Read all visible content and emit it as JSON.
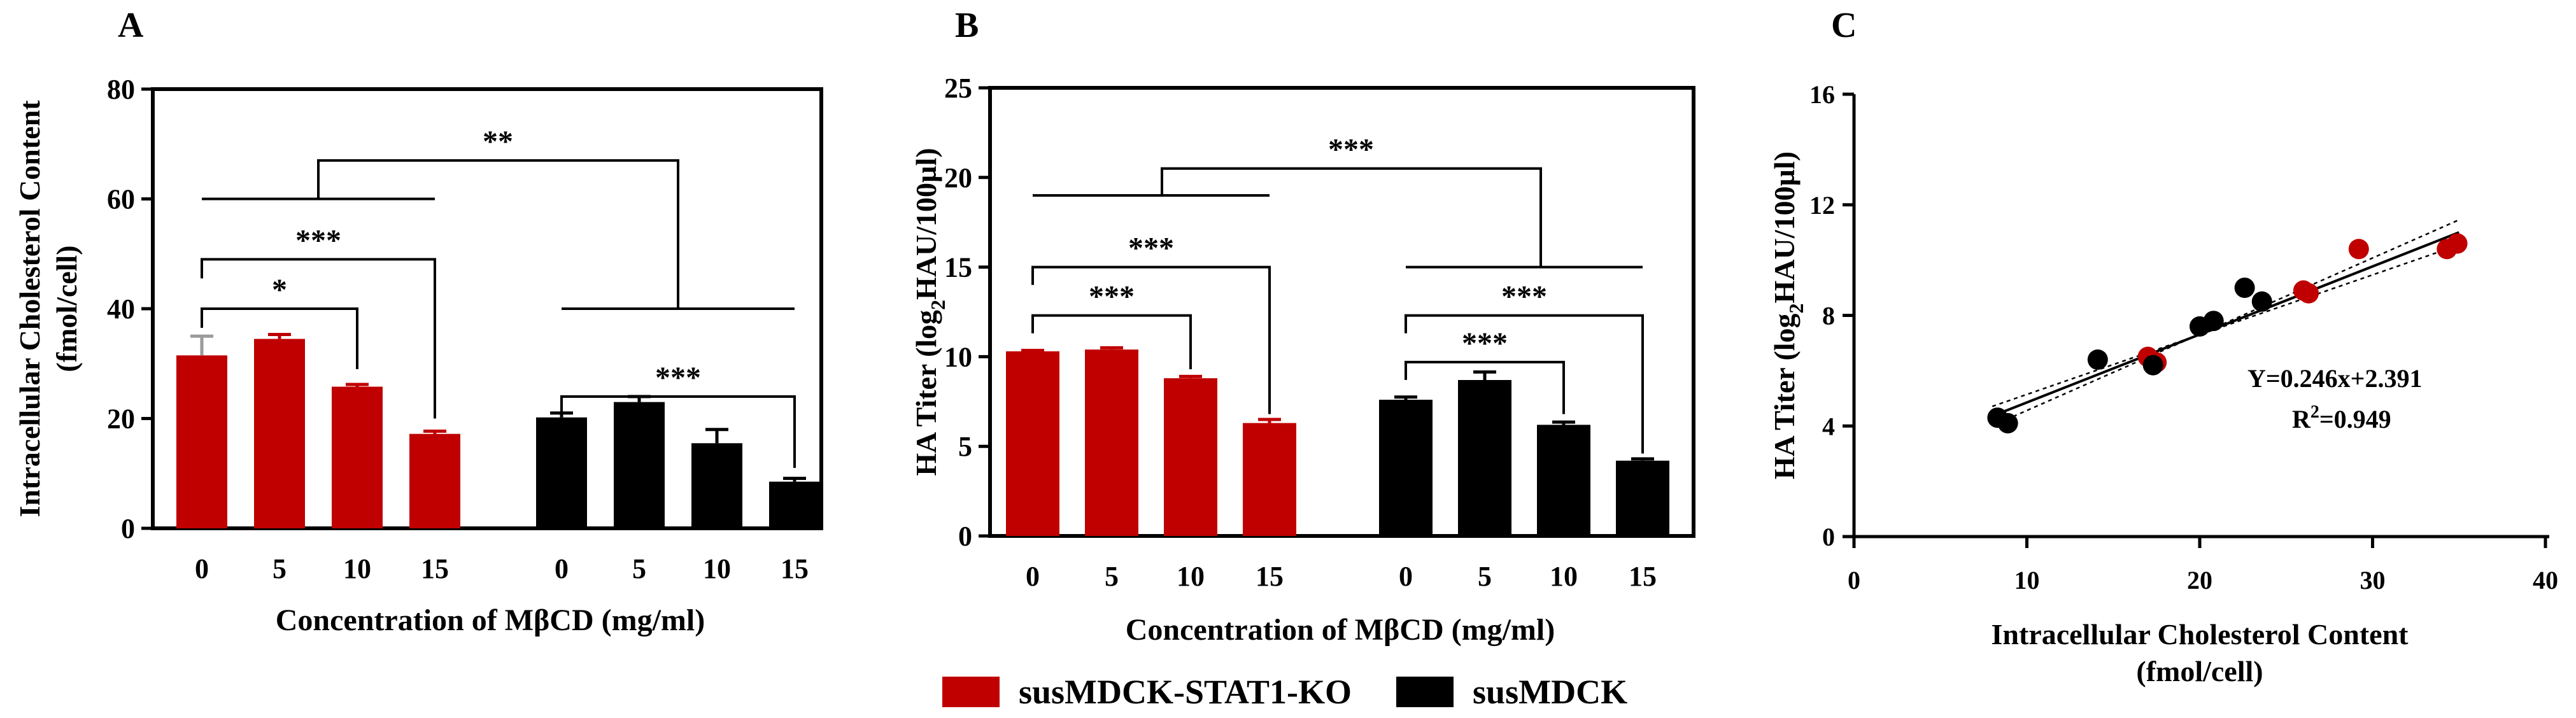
{
  "colors": {
    "ko": "#c00000",
    "wt": "#000000",
    "grey_err": "#9a9a9a"
  },
  "legend": {
    "ko_label": "susMDCK-STAT1-KO",
    "wt_label": "susMDCK"
  },
  "chart_data": [
    {
      "panel": "A",
      "type": "bar",
      "title": "",
      "xlabel": "Concentration of MβCD (mg/ml)",
      "ylabel": [
        "Intracellular Cholesterol Content",
        "(fmol/cell)"
      ],
      "ylim": [
        0,
        80
      ],
      "yticks": [
        0,
        20,
        40,
        60,
        80
      ],
      "categories": [
        "0",
        "5",
        "10",
        "15"
      ],
      "series": [
        {
          "name": "susMDCK-STAT1-KO",
          "values": [
            31.5,
            34.5,
            25.8,
            17.2
          ],
          "errors": [
            3.5,
            0.8,
            0.4,
            0.5
          ]
        },
        {
          "name": "susMDCK",
          "values": [
            20.2,
            23.0,
            15.5,
            8.5
          ],
          "errors": [
            0.8,
            1.0,
            2.5,
            0.6
          ]
        }
      ],
      "annotations": [
        {
          "label": "*",
          "group": "susMDCK-STAT1-KO",
          "from": "0",
          "to": "10"
        },
        {
          "label": "***",
          "group": "susMDCK-STAT1-KO",
          "from": "0",
          "to": "15"
        },
        {
          "label": "***",
          "group": "susMDCK",
          "from": "0",
          "to": "15"
        },
        {
          "label": "**",
          "group": "between",
          "from": "susMDCK-STAT1-KO",
          "to": "susMDCK"
        }
      ]
    },
    {
      "panel": "B",
      "type": "bar",
      "title": "",
      "xlabel": "Concentration of MβCD (mg/ml)",
      "ylabel": [
        "HA Titer (log",
        "2",
        "HAU/100µl)"
      ],
      "ylim": [
        0,
        25
      ],
      "yticks": [
        0,
        5,
        10,
        15,
        20,
        25
      ],
      "categories": [
        "0",
        "5",
        "10",
        "15"
      ],
      "series": [
        {
          "name": "susMDCK-STAT1-KO",
          "values": [
            10.3,
            10.4,
            8.8,
            6.3
          ],
          "errors": [
            0.05,
            0.1,
            0.1,
            0.2
          ]
        },
        {
          "name": "susMDCK",
          "values": [
            7.6,
            8.7,
            6.2,
            4.2
          ],
          "errors": [
            0.15,
            0.45,
            0.15,
            0.1
          ]
        }
      ],
      "annotations": [
        {
          "label": "***",
          "group": "susMDCK-STAT1-KO",
          "from": "0",
          "to": "10"
        },
        {
          "label": "***",
          "group": "susMDCK-STAT1-KO",
          "from": "0",
          "to": "15"
        },
        {
          "label": "***",
          "group": "susMDCK",
          "from": "0",
          "to": "10"
        },
        {
          "label": "***",
          "group": "susMDCK",
          "from": "0",
          "to": "15"
        },
        {
          "label": "***",
          "group": "between",
          "from": "susMDCK-STAT1-KO",
          "to": "susMDCK"
        }
      ]
    },
    {
      "panel": "C",
      "type": "scatter",
      "title": "",
      "xlabel": [
        "Intracellular Cholesterol Content",
        "(fmol/cell)"
      ],
      "ylabel": [
        "HA Titer (log",
        "2",
        "HAU/100µl)"
      ],
      "xlim": [
        0,
        40
      ],
      "ylim": [
        0,
        16
      ],
      "xticks": [
        0,
        10,
        20,
        30,
        40
      ],
      "yticks": [
        0,
        4,
        8,
        12,
        16
      ],
      "series": [
        {
          "name": "susMDCK-STAT1-KO",
          "points": [
            [
              17.0,
              6.5
            ],
            [
              17.5,
              6.3
            ],
            [
              26.0,
              8.9
            ],
            [
              26.3,
              8.8
            ],
            [
              29.2,
              10.4
            ],
            [
              34.3,
              10.4
            ],
            [
              34.9,
              10.6
            ]
          ]
        },
        {
          "name": "susMDCK",
          "points": [
            [
              8.3,
              4.3
            ],
            [
              8.9,
              4.1
            ],
            [
              14.1,
              6.4
            ],
            [
              17.3,
              6.2
            ],
            [
              20.0,
              7.6
            ],
            [
              20.8,
              7.8
            ],
            [
              22.6,
              9.0
            ],
            [
              23.6,
              8.5
            ]
          ]
        }
      ],
      "fit": {
        "slope": 0.246,
        "intercept": 2.391,
        "x_range": [
          8,
          35
        ]
      },
      "equation": "Y=0.246x+2.391",
      "r2_label": "R",
      "r2_sup": "2",
      "r2_value": "=0.949"
    }
  ]
}
